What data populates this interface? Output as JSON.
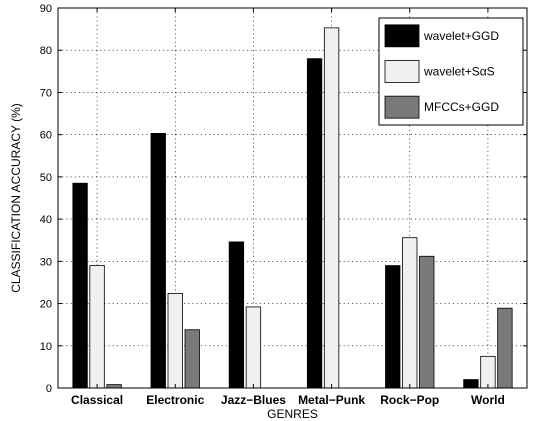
{
  "chart_data": {
    "type": "bar",
    "categories": [
      "Classical",
      "Electronic",
      "Jazz−Blues",
      "Metal−Punk",
      "Rock−Pop",
      "World"
    ],
    "series": [
      {
        "name": "wavelet+GGD",
        "values": [
          48.5,
          60.3,
          34.6,
          78.0,
          29.0,
          2.0
        ],
        "color": "#000000"
      },
      {
        "name": "wavelet+SαS",
        "values": [
          29.0,
          22.4,
          19.2,
          85.3,
          35.6,
          7.5
        ],
        "color": "#f0f0f0"
      },
      {
        "name": "MFCCs+GGD",
        "values": [
          0.8,
          13.8,
          0,
          0,
          31.2,
          18.9
        ],
        "color": "#7a7a7a"
      }
    ],
    "title": "",
    "xlabel": "GENRES",
    "ylabel": "CLASSIFICATION ACCURACY (%)",
    "ylim": [
      0,
      90
    ],
    "yticks": [
      0,
      10,
      20,
      30,
      40,
      50,
      60,
      70,
      80,
      90
    ],
    "grid": true,
    "legend_position": "top-right"
  }
}
